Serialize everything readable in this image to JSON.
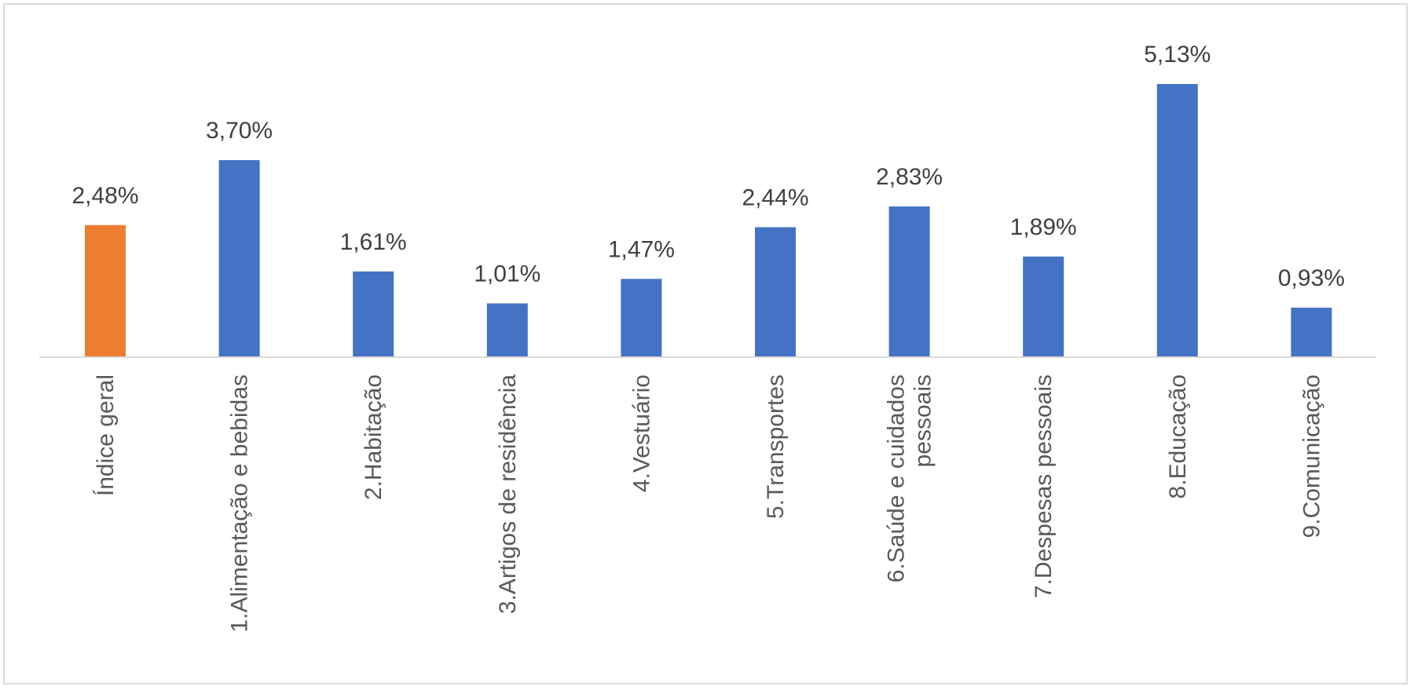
{
  "chart_data": {
    "type": "bar",
    "title": "",
    "xlabel": "",
    "ylabel": "",
    "ylim": [
      0,
      5.13
    ],
    "grid": false,
    "legend": "none",
    "categories": [
      "Índice geral",
      "1.Alimentação e bebidas",
      "2.Habitação",
      "3.Artigos de residência",
      "4.Vestuário",
      "5.Transportes",
      "6.Saúde e cuidados pessoais",
      "7.Despesas pessoais",
      "8.Educação",
      "9.Comunicação"
    ],
    "values": [
      2.48,
      3.7,
      1.61,
      1.01,
      1.47,
      2.44,
      2.83,
      1.89,
      5.13,
      0.93
    ],
    "data_labels": [
      "2,48%",
      "3,70%",
      "1,61%",
      "1,01%",
      "1,47%",
      "2,44%",
      "2,83%",
      "1,89%",
      "5,13%",
      "0,93%"
    ],
    "label_lines": [
      [
        "Índice geral"
      ],
      [
        "1.Alimentação e bebidas"
      ],
      [
        "2.Habitação"
      ],
      [
        "3.Artigos de residência"
      ],
      [
        "4.Vestuário"
      ],
      [
        "5.Transportes"
      ],
      [
        "6.Saúde e cuidados",
        "pessoais"
      ],
      [
        "7.Despesas pessoais"
      ],
      [
        "8.Educação"
      ],
      [
        "9.Comunicação"
      ]
    ],
    "colors": {
      "highlight": "#ED7D31",
      "bar": "#4472C4",
      "axis": "#d9d9d9",
      "text": "#404040"
    },
    "highlight_index": 0
  }
}
